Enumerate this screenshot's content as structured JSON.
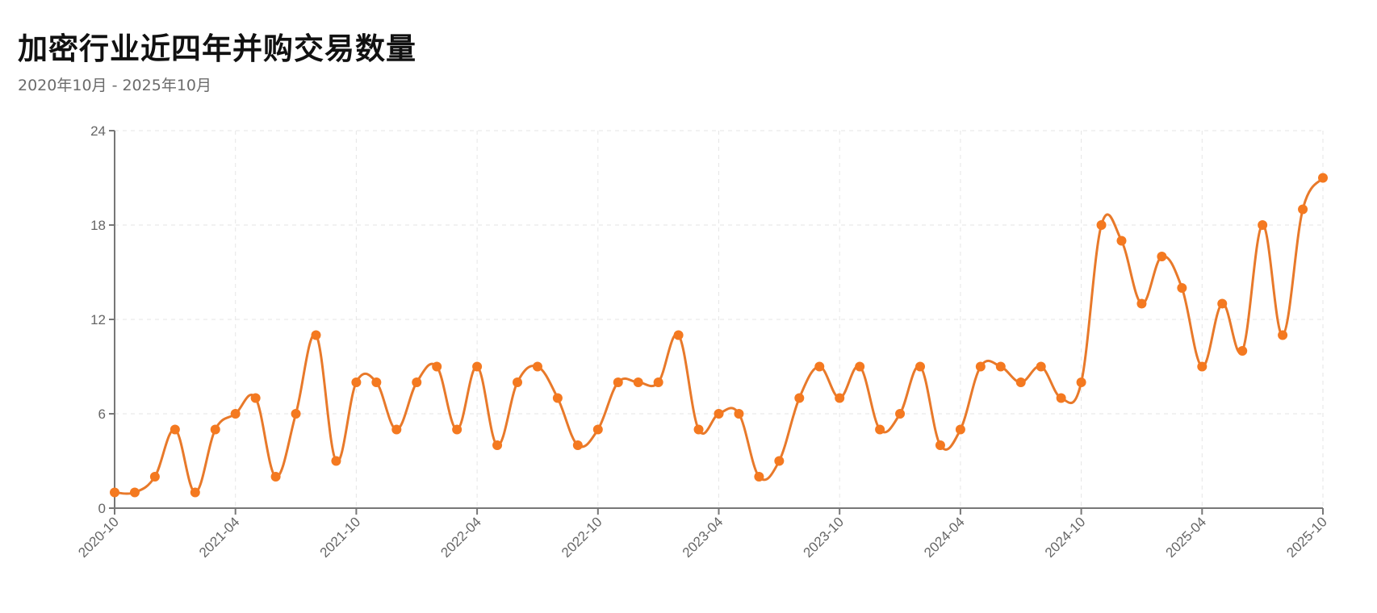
{
  "header": {
    "title": "加密行业近四年并购交易数量",
    "subtitle": "2020年10月 - 2025年10月"
  },
  "colors": {
    "line": "#E8792A",
    "marker": "#F47920",
    "axis": "#777777",
    "grid": "#E6E6E6",
    "tick_text": "#666666"
  },
  "chart_data": {
    "type": "line",
    "title": "加密行业近四年并购交易数量",
    "subtitle": "2020年10月 - 2025年10月",
    "xlabel": "",
    "ylabel": "",
    "ylim": [
      0,
      24
    ],
    "yticks": [
      0,
      6,
      12,
      18,
      24
    ],
    "xtick_labels": [
      "2020-10",
      "2021-04",
      "2021-10",
      "2022-04",
      "2022-10",
      "2023-04",
      "2023-10",
      "2024-04",
      "2024-10",
      "2025-04",
      "2025-10"
    ],
    "grid": true,
    "legend": null,
    "x": [
      "2020-10",
      "2020-11",
      "2020-12",
      "2021-01",
      "2021-02",
      "2021-03",
      "2021-04",
      "2021-05",
      "2021-06",
      "2021-07",
      "2021-08",
      "2021-09",
      "2021-10",
      "2021-11",
      "2021-12",
      "2022-01",
      "2022-02",
      "2022-03",
      "2022-04",
      "2022-05",
      "2022-06",
      "2022-07",
      "2022-08",
      "2022-09",
      "2022-10",
      "2022-11",
      "2022-12",
      "2023-01",
      "2023-02",
      "2023-03",
      "2023-04",
      "2023-05",
      "2023-06",
      "2023-07",
      "2023-08",
      "2023-09",
      "2023-10",
      "2023-11",
      "2023-12",
      "2024-01",
      "2024-02",
      "2024-03",
      "2024-04",
      "2024-05",
      "2024-06",
      "2024-07",
      "2024-08",
      "2024-09",
      "2024-10",
      "2024-11",
      "2024-12",
      "2025-01",
      "2025-02",
      "2025-03",
      "2025-04",
      "2025-05",
      "2025-06",
      "2025-07",
      "2025-08",
      "2025-09",
      "2025-10"
    ],
    "series": [
      {
        "name": "并购交易数量",
        "values": [
          1,
          1,
          2,
          5,
          1,
          5,
          6,
          7,
          2,
          6,
          11,
          3,
          8,
          8,
          5,
          8,
          9,
          5,
          9,
          4,
          8,
          9,
          7,
          4,
          5,
          8,
          8,
          8,
          11,
          5,
          6,
          6,
          2,
          3,
          7,
          9,
          7,
          9,
          5,
          6,
          9,
          4,
          5,
          9,
          9,
          8,
          9,
          7,
          8,
          18,
          17,
          13,
          16,
          14,
          9,
          13,
          10,
          18,
          11,
          19,
          21
        ]
      }
    ]
  }
}
